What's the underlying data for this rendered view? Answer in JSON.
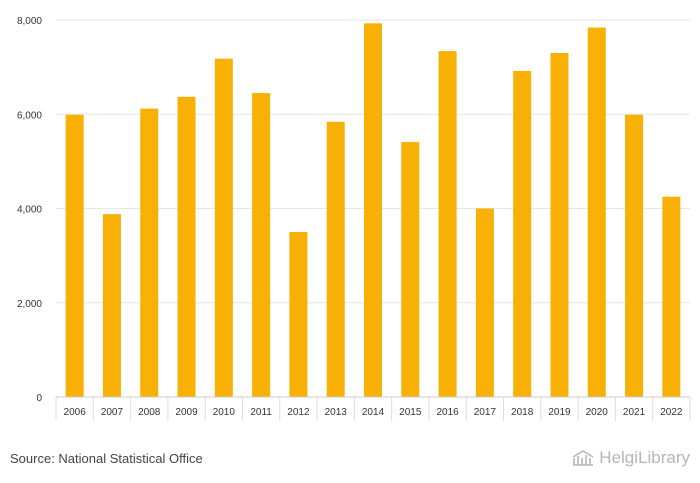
{
  "chart_data": {
    "type": "bar",
    "categories": [
      "2006",
      "2007",
      "2008",
      "2009",
      "2010",
      "2011",
      "2012",
      "2013",
      "2014",
      "2015",
      "2016",
      "2017",
      "2018",
      "2019",
      "2020",
      "2021",
      "2022"
    ],
    "values": [
      5990,
      3880,
      6120,
      6370,
      7180,
      6450,
      3500,
      5840,
      7930,
      5410,
      7340,
      4000,
      6920,
      7300,
      7840,
      5990,
      4250
    ],
    "ylim": [
      0,
      8000
    ],
    "yticks": [
      0,
      2000,
      4000,
      6000,
      8000
    ],
    "ytick_labels": [
      "0",
      "2,000",
      "4,000",
      "6,000",
      "8,000"
    ],
    "bar_color": "#f9b005",
    "grid": true,
    "title": "",
    "xlabel": "",
    "ylabel": ""
  },
  "footer": {
    "source": "Source: National Statistical Office",
    "brand": "HelgiLibrary"
  },
  "icons": {
    "brand_logo": "library-building-icon"
  }
}
